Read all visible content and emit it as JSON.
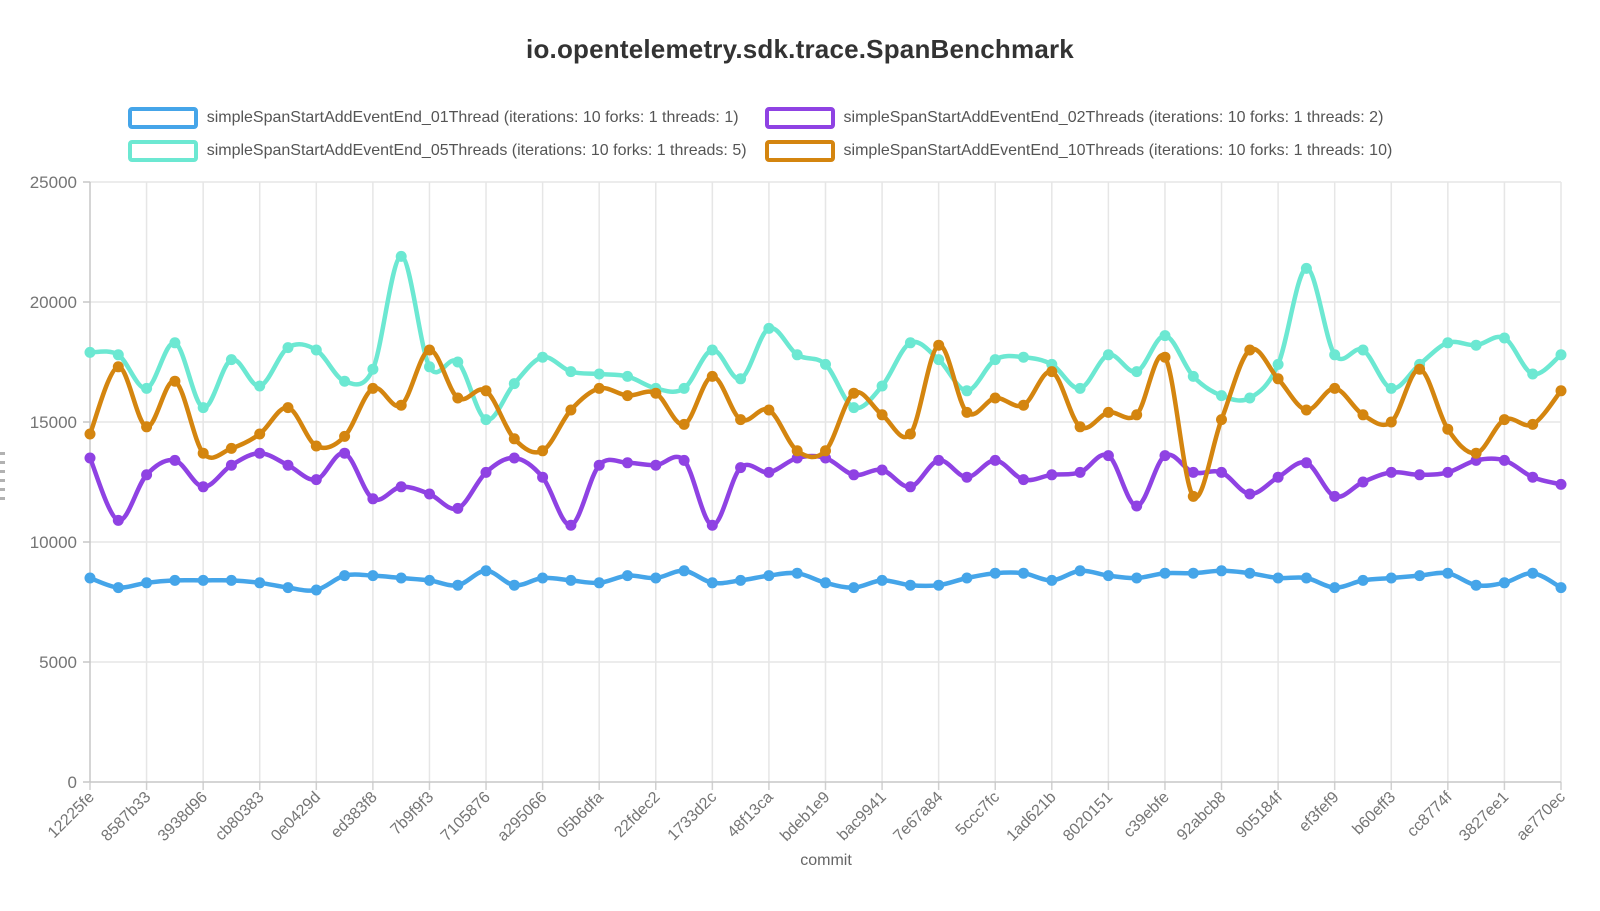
{
  "title": "io.opentelemetry.sdk.trace.SpanBenchmark",
  "chart_data": {
    "type": "line",
    "title": "io.opentelemetry.sdk.trace.SpanBenchmark",
    "xlabel": "commit",
    "ylabel": "",
    "ylim": [
      0,
      25000
    ],
    "y_ticks": [
      0,
      5000,
      10000,
      15000,
      20000,
      25000
    ],
    "grid": true,
    "legend_position": "top",
    "points_per_label": 2,
    "x_tick_labels": [
      "12225fe",
      "8587b33",
      "3938d96",
      "cb80383",
      "0e0429d",
      "ed383f8",
      "7b9f9f3",
      "7105876",
      "a295066",
      "05b6dfa",
      "22fdec2",
      "1733d2c",
      "48f13ca",
      "bdeb1e9",
      "bac9941",
      "7e67a84",
      "5ccc7fc",
      "1ad621b",
      "8020151",
      "c39ebfe",
      "92abcb8",
      "905184f",
      "ef3fef9",
      "b60eff3",
      "cc8774f",
      "3827ee1",
      "ae770ec"
    ],
    "series": [
      {
        "name": "simpleSpanStartAddEventEnd_01Thread (iterations: 10 forks: 1 threads: 1)",
        "color": "#45a5e9",
        "values": [
          8500,
          8100,
          8300,
          8400,
          8400,
          8400,
          8300,
          8100,
          8000,
          8600,
          8600,
          8500,
          8400,
          8200,
          8800,
          8200,
          8500,
          8400,
          8300,
          8600,
          8500,
          8800,
          8300,
          8400,
          8600,
          8700,
          8300,
          8100,
          8400,
          8200,
          8200,
          8500,
          8700,
          8700,
          8400,
          8800,
          8600,
          8500,
          8700,
          8700,
          8800,
          8700,
          8500,
          8500,
          8100,
          8400,
          8500,
          8600,
          8700,
          8200,
          8300,
          8700,
          8100
        ]
      },
      {
        "name": "simpleSpanStartAddEventEnd_02Threads (iterations: 10 forks: 1 threads: 2)",
        "color": "#8f42e3",
        "values": [
          13500,
          10900,
          12800,
          13400,
          12300,
          13200,
          13700,
          13200,
          12600,
          13700,
          11800,
          12300,
          12000,
          11400,
          12900,
          13500,
          12700,
          10700,
          13200,
          13300,
          13200,
          13400,
          10700,
          13100,
          12900,
          13500,
          13500,
          12800,
          13000,
          12300,
          13400,
          12700,
          13400,
          12600,
          12800,
          12900,
          13600,
          11500,
          13600,
          12900,
          12900,
          12000,
          12700,
          13300,
          11900,
          12500,
          12900,
          12800,
          12900,
          13400,
          13400,
          12700,
          12400
        ]
      },
      {
        "name": "simpleSpanStartAddEventEnd_05Threads (iterations: 10 forks: 1 threads: 5)",
        "color": "#6ce8d2",
        "values": [
          17900,
          17800,
          16400,
          18300,
          15600,
          17600,
          16500,
          18100,
          18000,
          16700,
          17200,
          21900,
          17300,
          17500,
          15100,
          16600,
          17700,
          17100,
          17000,
          16900,
          16400,
          16400,
          18000,
          16800,
          18900,
          17800,
          17400,
          15600,
          16500,
          18300,
          17600,
          16300,
          17600,
          17700,
          17400,
          16400,
          17800,
          17100,
          18600,
          16900,
          16100,
          16000,
          17400,
          21400,
          17800,
          18000,
          16400,
          17400,
          18300,
          18200,
          18500,
          17000,
          17800
        ]
      },
      {
        "name": "simpleSpanStartAddEventEnd_10Threads (iterations: 10 forks: 1 threads: 10)",
        "color": "#d4850f",
        "values": [
          14500,
          17300,
          14800,
          16700,
          13700,
          13900,
          14500,
          15600,
          14000,
          14400,
          16400,
          15700,
          18000,
          16000,
          16300,
          14300,
          13800,
          15500,
          16400,
          16100,
          16200,
          14900,
          16900,
          15100,
          15500,
          13800,
          13800,
          16200,
          15300,
          14500,
          18200,
          15400,
          16000,
          15700,
          17100,
          14800,
          15400,
          15300,
          17700,
          11900,
          15100,
          18000,
          16800,
          15500,
          16400,
          15300,
          15000,
          17200,
          14700,
          13700,
          15100,
          14900,
          16300
        ]
      }
    ]
  }
}
